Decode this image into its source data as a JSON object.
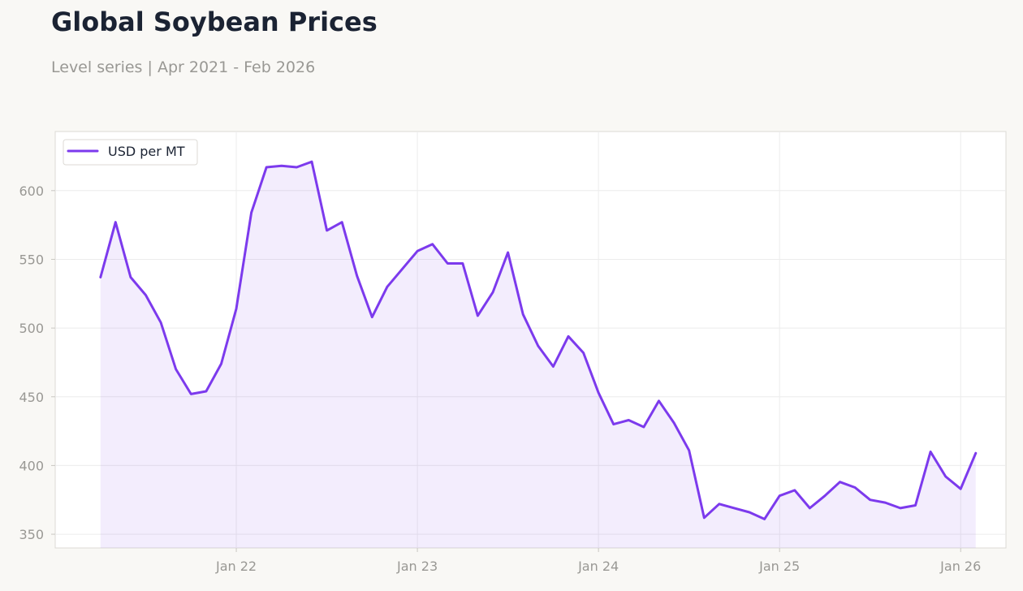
{
  "header": {
    "title": "Global Soybean Prices",
    "subtitle": "Level series | Apr 2021 - Feb 2026"
  },
  "colors": {
    "line": "#7c3aed",
    "fill": "#7c3aed",
    "plot_bg": "#ffffff",
    "page_bg": "#f9f8f5",
    "grid": "#ececec",
    "axis_text": "#999894"
  },
  "chart_data": {
    "type": "line",
    "title": "Global Soybean Prices",
    "subtitle": "Level series | Apr 2021 - Feb 2026",
    "xlabel": "",
    "ylabel": "",
    "x_start": "2021-04",
    "x_end": "2026-02",
    "xlim": [
      "2021-01",
      "2026-04"
    ],
    "ylim": [
      340,
      643
    ],
    "x_ticks": [
      "2022-01",
      "2023-01",
      "2024-01",
      "2025-01",
      "2026-01"
    ],
    "x_tick_labels": [
      "Jan 22",
      "Jan 23",
      "Jan 24",
      "Jan 25",
      "Jan 26"
    ],
    "y_ticks": [
      350,
      400,
      450,
      500,
      550,
      600
    ],
    "y_tick_labels": [
      "350",
      "400",
      "450",
      "500",
      "550",
      "600"
    ],
    "grid": true,
    "legend_position": "top-left",
    "series": [
      {
        "name": "USD per MT",
        "x": [
          "2021-04",
          "2021-05",
          "2021-06",
          "2021-07",
          "2021-08",
          "2021-09",
          "2021-10",
          "2021-11",
          "2021-12",
          "2022-01",
          "2022-02",
          "2022-03",
          "2022-04",
          "2022-05",
          "2022-06",
          "2022-07",
          "2022-08",
          "2022-09",
          "2022-10",
          "2022-11",
          "2022-12",
          "2023-01",
          "2023-02",
          "2023-03",
          "2023-04",
          "2023-05",
          "2023-06",
          "2023-07",
          "2023-08",
          "2023-09",
          "2023-10",
          "2023-11",
          "2023-12",
          "2024-01",
          "2024-02",
          "2024-03",
          "2024-04",
          "2024-05",
          "2024-06",
          "2024-07",
          "2024-08",
          "2024-09",
          "2024-10",
          "2024-11",
          "2024-12",
          "2025-01",
          "2025-02",
          "2025-03",
          "2025-04",
          "2025-05",
          "2025-06",
          "2025-07",
          "2025-08",
          "2025-09",
          "2025-10",
          "2025-11",
          "2025-12",
          "2026-01",
          "2026-02"
        ],
        "values": [
          537,
          577,
          537,
          524,
          504,
          470,
          452,
          454,
          474,
          514,
          584,
          617,
          618,
          617,
          621,
          571,
          577,
          538,
          508,
          530,
          543,
          556,
          561,
          547,
          547,
          509,
          526,
          555,
          510,
          487,
          472,
          494,
          482,
          453,
          430,
          433,
          428,
          447,
          431,
          411,
          362,
          372,
          369,
          366,
          361,
          378,
          382,
          369,
          378,
          388,
          384,
          375,
          373,
          369,
          371,
          410,
          392,
          383,
          409
        ]
      }
    ]
  }
}
